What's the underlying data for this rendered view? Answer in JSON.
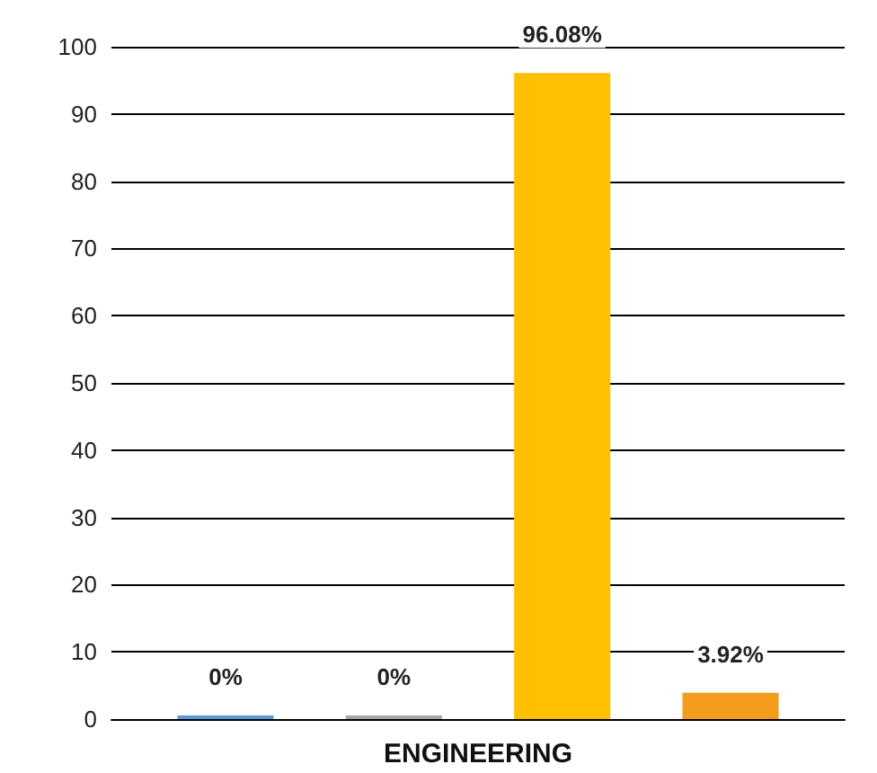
{
  "chart_data": {
    "type": "bar",
    "categories": [
      "ENGINEERING"
    ],
    "series": [
      {
        "color": "#5b9bd5",
        "values": [
          0
        ],
        "value_labels": [
          "0%"
        ]
      },
      {
        "color": "#a5a5a5",
        "values": [
          0
        ],
        "value_labels": [
          "0%"
        ]
      },
      {
        "color": "#ffc000",
        "values": [
          96.08
        ],
        "value_labels": [
          "96.08%"
        ]
      },
      {
        "color": "#f39c1e",
        "values": [
          3.92
        ],
        "value_labels": [
          "3.92%"
        ]
      }
    ],
    "ylim": [
      0,
      100
    ],
    "yticks": [
      0,
      10,
      20,
      30,
      40,
      50,
      60,
      70,
      80,
      90,
      100
    ],
    "grid": "y"
  }
}
